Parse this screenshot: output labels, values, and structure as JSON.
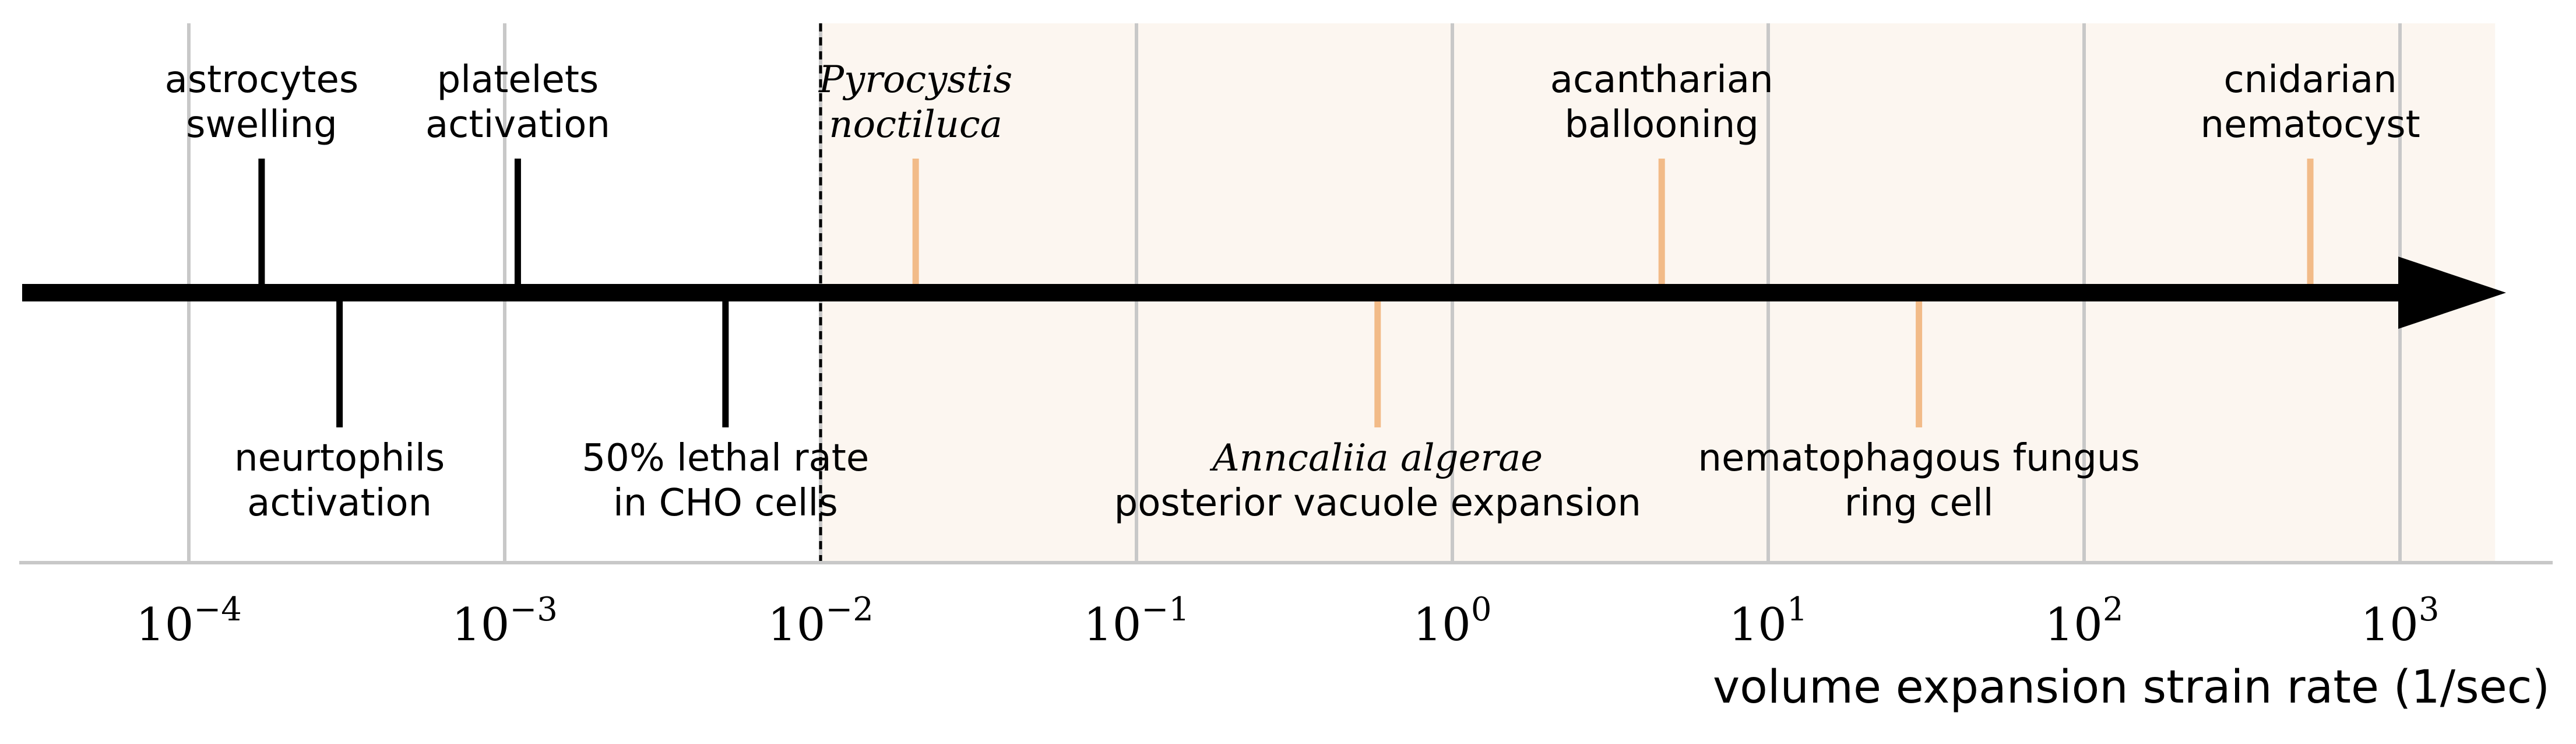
{
  "chart_data": {
    "type": "timeline",
    "xscale": "log",
    "xlim": [
      1e-05,
      2000
    ],
    "xlabel": "volume expansion strain rate (1/sec)",
    "grid": true,
    "threshold": {
      "x": 0.01,
      "style": "dashed"
    },
    "shaded_region": {
      "from": 0.01,
      "to": 2000,
      "color": "#fcf6f0"
    },
    "ticks": [
      {
        "value": 0.0001,
        "base": "10",
        "exp": "−4"
      },
      {
        "value": 0.001,
        "base": "10",
        "exp": "−3"
      },
      {
        "value": 0.01,
        "base": "10",
        "exp": "−2"
      },
      {
        "value": 0.1,
        "base": "10",
        "exp": "−1"
      },
      {
        "value": 1,
        "base": "10",
        "exp": "0"
      },
      {
        "value": 10,
        "base": "10",
        "exp": "1"
      },
      {
        "value": 100,
        "base": "10",
        "exp": "2"
      },
      {
        "value": 1000,
        "base": "10",
        "exp": "3"
      }
    ],
    "colors": {
      "cell_events": "#000000",
      "organism_events": "#f2bb88",
      "grid": "#c8c8c8",
      "axis": "#000000"
    },
    "events": [
      {
        "x": 0.00017,
        "side": "above",
        "color": "#000000",
        "lines": [
          {
            "text": "astrocytes",
            "italic": false
          },
          {
            "text": "swelling",
            "italic": false
          }
        ]
      },
      {
        "x": 0.0003,
        "side": "below",
        "color": "#000000",
        "lines": [
          {
            "text": "neurtophils",
            "italic": false
          },
          {
            "text": "activation",
            "italic": false
          }
        ]
      },
      {
        "x": 0.0011,
        "side": "above",
        "color": "#000000",
        "lines": [
          {
            "text": "platelets",
            "italic": false
          },
          {
            "text": "activation",
            "italic": false
          }
        ]
      },
      {
        "x": 0.005,
        "side": "below",
        "color": "#000000",
        "lines": [
          {
            "text": "50% lethal rate",
            "italic": false
          },
          {
            "text": "in CHO cells",
            "italic": false
          }
        ]
      },
      {
        "x": 0.02,
        "side": "above",
        "color": "#f2bb88",
        "lines": [
          {
            "text": "Pyrocystis",
            "italic": true
          },
          {
            "text": "noctiluca",
            "italic": true
          }
        ]
      },
      {
        "x": 0.58,
        "side": "below",
        "color": "#f2bb88",
        "lines": [
          {
            "text": "Anncaliia algerae",
            "italic": true
          },
          {
            "text": "posterior vacuole expansion",
            "italic": false
          }
        ]
      },
      {
        "x": 4.6,
        "side": "above",
        "color": "#f2bb88",
        "lines": [
          {
            "text": "acantharian",
            "italic": false
          },
          {
            "text": "ballooning",
            "italic": false
          }
        ]
      },
      {
        "x": 30,
        "side": "below",
        "color": "#f2bb88",
        "lines": [
          {
            "text": "nematophagous fungus",
            "italic": false
          },
          {
            "text": "ring cell",
            "italic": false
          }
        ]
      },
      {
        "x": 520,
        "side": "above",
        "color": "#f2bb88",
        "lines": [
          {
            "text": "cnidarian",
            "italic": false
          },
          {
            "text": "nematocyst",
            "italic": false
          }
        ]
      }
    ]
  }
}
